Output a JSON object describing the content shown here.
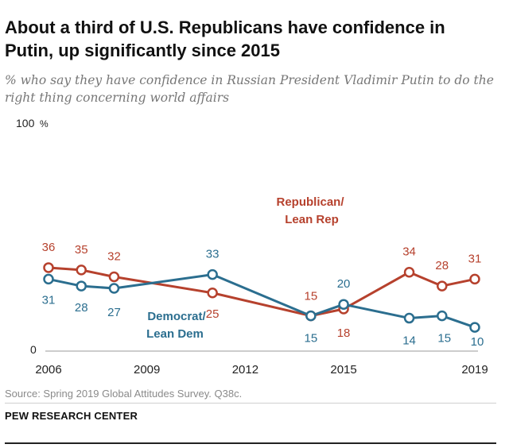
{
  "title": "About a third of U.S. Republicans have confidence in Putin, up significantly since 2015",
  "subtitle": "% who say they have confidence in Russian President Vladimir Putin to do the right thing concerning world affairs",
  "source": "Source: Spring 2019 Global Attitudes Survey. Q38c.",
  "organization": "PEW RESEARCH CENTER",
  "chart_data": {
    "type": "line",
    "title": "About a third of U.S. Republicans have confidence in Putin, up significantly since 2015",
    "subtitle": "% who say they have confidence in Russian President Vladimir Putin to do the right thing concerning world affairs",
    "y_top_label": "100",
    "y_unit": "%",
    "y_bottom_label": "0",
    "ylim": [
      0,
      100
    ],
    "xlim": [
      2006,
      2019
    ],
    "x_tick_labels": [
      "2006",
      "2009",
      "2012",
      "2015",
      "2019"
    ],
    "x_ticks": [
      2006,
      2009,
      2012,
      2015,
      2019
    ],
    "grid": false,
    "legend": "inline labels",
    "series": [
      {
        "name": "Republican/ Lean Rep",
        "label_lines": [
          "Republican/",
          "Lean Rep"
        ],
        "color": "#b6412d",
        "x": [
          2006,
          2007,
          2008,
          2011,
          2014,
          2015,
          2017,
          2018,
          2019
        ],
        "values": [
          36,
          35,
          32,
          25,
          15,
          18,
          34,
          28,
          31
        ],
        "value_labels": [
          "36",
          "35",
          "32",
          "25",
          "15",
          "18",
          "34",
          "28",
          "31"
        ]
      },
      {
        "name": "Democrat/ Lean Dem",
        "label_lines": [
          "Democrat/",
          "Lean Dem"
        ],
        "color": "#2b6e8f",
        "x": [
          2006,
          2007,
          2008,
          2011,
          2014,
          2015,
          2017,
          2018,
          2019
        ],
        "values": [
          31,
          28,
          27,
          33,
          15,
          20,
          14,
          15,
          10
        ],
        "value_labels": [
          "31",
          "28",
          "27",
          "33",
          "15",
          "20",
          "14",
          "15",
          "10"
        ]
      }
    ]
  }
}
